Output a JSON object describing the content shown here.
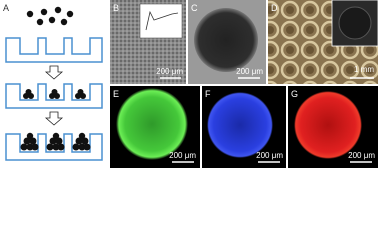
{
  "panels": [
    {
      "label": "A"
    },
    {
      "label": "B",
      "scale_bar": "200 μm"
    },
    {
      "label": "C",
      "scale_bar": "200 μm"
    },
    {
      "label": "D",
      "scale_bar": "1 mm"
    },
    {
      "label": "E",
      "scale_bar": "200 μm"
    },
    {
      "label": "F",
      "scale_bar": "200 μm"
    },
    {
      "label": "G",
      "scale_bar": "200 μm"
    }
  ]
}
